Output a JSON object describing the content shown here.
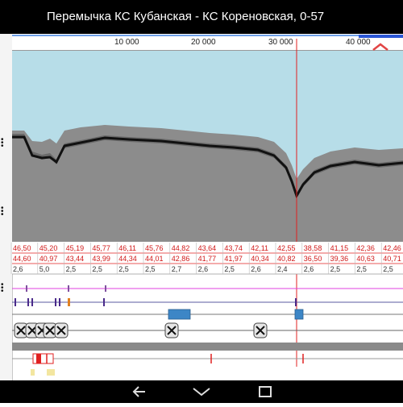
{
  "title": "Перемычка КС Кубанская - КС Кореновская, 0-57",
  "ruler": {
    "labels": [
      "10 000",
      "20 000",
      "30 000",
      "40 000"
    ]
  },
  "track_rows": {
    "row1": [
      "46,50",
      "45,20",
      "45,19",
      "45,77",
      "46,11",
      "45,76",
      "44,82",
      "43,64",
      "43,74",
      "42,11",
      "42,55",
      "38,58",
      "41,15",
      "42,36",
      "42,46"
    ],
    "row2": [
      "44,60",
      "40,97",
      "43,44",
      "43,99",
      "44,34",
      "44,01",
      "42,86",
      "41,77",
      "41,97",
      "40,34",
      "40,82",
      "36,50",
      "39,36",
      "40,63",
      "40,71"
    ],
    "row3": [
      "2,6",
      "5,0",
      "2,5",
      "2,5",
      "2,5",
      "2,5",
      "2,7",
      "2,6",
      "2,5",
      "2,6",
      "2,4",
      "2,6",
      "2,5",
      "2,5",
      "2,5"
    ]
  },
  "colors": {
    "accent_red": "#e02020",
    "sky": "#b7dde8",
    "ground": "#8c8c8c",
    "track_blue": "#3d86c6"
  },
  "icons": {
    "collapse": "chevron-up-icon",
    "nav": [
      "back-icon",
      "home-icon",
      "recents-icon"
    ]
  }
}
